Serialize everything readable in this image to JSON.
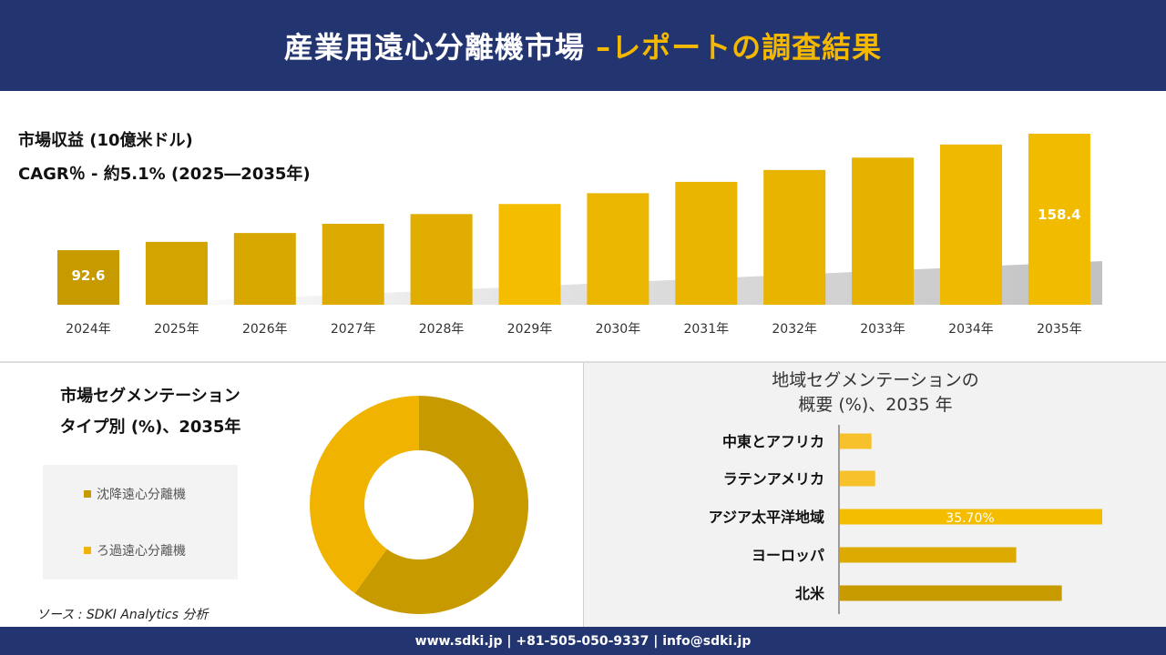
{
  "header": {
    "title_main": "産業用遠心分離機市場 ",
    "title_accent": "–レポートの調査結果"
  },
  "colors": {
    "navy": "#233570",
    "gold": "#f5b800",
    "bar_dark": "#c79a00",
    "bar_mid": "#dcaa00",
    "bar_bright": "#f4bd00"
  },
  "revenue": {
    "caption_line1": "市場収益 (10億米ドル)",
    "caption_line2": "CAGR％ - 約5.1% (2025―2035年)"
  },
  "segment": {
    "title_line1": "市場セグメンテーション",
    "title_line2": "タイプ別 (%)、2035年",
    "legend": [
      {
        "label": "沈降遠心分離機",
        "color": "#c79a00"
      },
      {
        "label": "ろ過遠心分離機",
        "color": "#f0b400"
      }
    ]
  },
  "region": {
    "title_line1": "地域セグメンテーションの",
    "title_line2": "概要 (%)、2035 年"
  },
  "source": "ソース : SDKI Analytics 分析",
  "footer": "www.sdki.jp | +81-505-050-9337 | info@sdki.jp",
  "chart_data": [
    {
      "type": "bar",
      "categories": [
        "2024年",
        "2025年",
        "2026年",
        "2027年",
        "2028年",
        "2029年",
        "2030年",
        "2031年",
        "2032年",
        "2033年",
        "2034年",
        "2035年"
      ],
      "values": [
        92.6,
        97.3,
        102.3,
        107.5,
        113.0,
        118.7,
        124.8,
        131.2,
        137.9,
        144.9,
        152.3,
        158.4
      ],
      "data_labels": {
        "0": "92.6",
        "11": "158.4"
      },
      "grid": false
    },
    {
      "type": "pie",
      "donut": true,
      "categories": [
        "沈降遠心分離機",
        "ろ過遠心分離機"
      ],
      "values": [
        60,
        40
      ],
      "colors": [
        "#c79a00",
        "#f0b400"
      ]
    },
    {
      "type": "bar",
      "orientation": "horizontal",
      "categories": [
        "中東とアフリカ",
        "ラテンアメリカ",
        "アジア太平洋地域",
        "ヨーロッパ",
        "北米"
      ],
      "values": [
        4.3,
        4.8,
        35.7,
        24.0,
        30.2
      ],
      "data_labels": {
        "2": "35.70%"
      },
      "colors": [
        "#f6c12a",
        "#f6c12a",
        "#f4bd00",
        "#dcaa00",
        "#c79a00"
      ]
    }
  ]
}
